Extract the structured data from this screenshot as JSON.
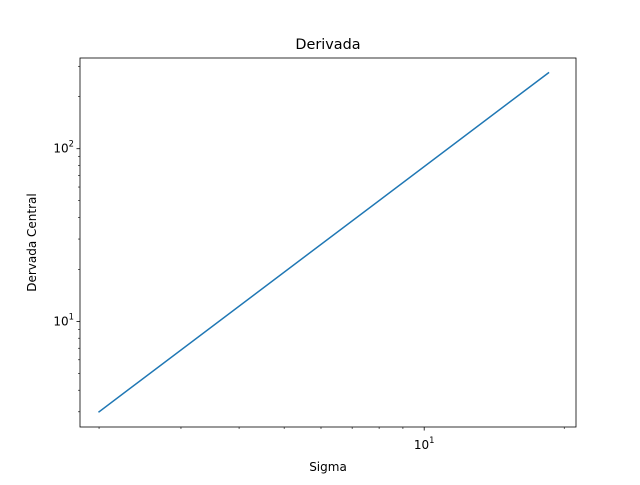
{
  "chart_data": {
    "type": "line",
    "title": "Derivada",
    "xlabel": "Sigma",
    "ylabel": "Dervada Central",
    "xscale": "log",
    "yscale": "log",
    "xlim": [
      1.82,
      21.2
    ],
    "ylim": [
      2.45,
      335
    ],
    "grid": false,
    "legend": "none",
    "x_ticks": [
      {
        "base": "10",
        "exp": "1",
        "value": 10
      }
    ],
    "y_ticks": [
      {
        "base": "10",
        "exp": "1",
        "value": 10
      },
      {
        "base": "10",
        "exp": "2",
        "value": 100
      }
    ],
    "series": [
      {
        "color": "#1f77b4",
        "x": [
          2.0,
          18.5
        ],
        "y": [
          3.0,
          275
        ]
      }
    ]
  }
}
